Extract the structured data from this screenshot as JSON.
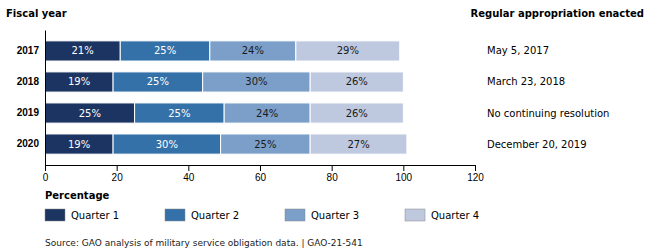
{
  "chart_data": {
    "type": "bar",
    "orientation": "horizontal",
    "stacked": true,
    "data_labels": true,
    "ylabel": "Fiscal year",
    "xlabel": "Percentage",
    "categories": [
      "2017",
      "2018",
      "2019",
      "2020"
    ],
    "series": [
      {
        "name": "Quarter 1",
        "color": "#1c3461",
        "values": [
          21,
          19,
          25,
          19
        ],
        "value_labels": [
          "21%",
          "19%",
          "25%",
          "19%"
        ]
      },
      {
        "name": "Quarter 2",
        "color": "#3471a8",
        "values": [
          25,
          25,
          25,
          30
        ],
        "value_labels": [
          "25%",
          "25%",
          "25%",
          "30%"
        ]
      },
      {
        "name": "Quarter 3",
        "color": "#7b9fc9",
        "values": [
          24,
          30,
          24,
          25
        ],
        "value_labels": [
          "24%",
          "30%",
          "24%",
          "25%"
        ]
      },
      {
        "name": "Quarter 4",
        "color": "#bec8de",
        "values": [
          29,
          26,
          26,
          27
        ],
        "value_labels": [
          "29%",
          "26%",
          "26%",
          "27%"
        ]
      }
    ],
    "annotation_header": "Regular appropriation enacted",
    "annotations": [
      "May 5, 2017",
      "March 23, 2018",
      "No continuing resolution",
      "December 20, 2019"
    ],
    "source": "Source: GAO analysis of military service obligation data.  |  GAO-21-541",
    "xlim": [
      0,
      120
    ],
    "xticks": [
      0,
      20,
      40,
      60,
      80,
      100,
      120
    ]
  }
}
